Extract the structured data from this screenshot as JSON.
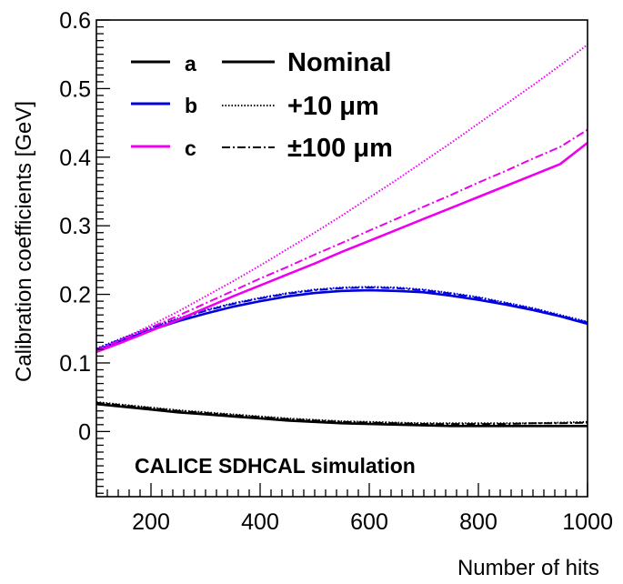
{
  "chart_data": {
    "type": "line",
    "xlabel": "Number of hits",
    "ylabel": "Calibration coefficients [GeV]",
    "xlim": [
      100,
      1000
    ],
    "ylim": [
      -0.095,
      0.6
    ],
    "x_ticks": [
      "200",
      "400",
      "600",
      "800",
      "1000"
    ],
    "y_ticks": [
      "0",
      "0.1",
      "0.2",
      "0.3",
      "0.4",
      "0.5",
      "0.6"
    ],
    "grid": false,
    "annotation": "CALICE SDHCAL simulation",
    "legend": {
      "placement": "top-left",
      "coefficients": [
        {
          "label": "a",
          "color": "#000000"
        },
        {
          "label": "b",
          "color": "#0000dd"
        },
        {
          "label": "c",
          "color": "#ee00ee"
        }
      ],
      "variations": [
        {
          "label": "Nominal",
          "style": "solid"
        },
        {
          "label": "+10 μm",
          "style": "dotted"
        },
        {
          "label": "±100 μm",
          "style": "dashdot"
        }
      ]
    },
    "x": [
      100,
      150,
      200,
      250,
      300,
      350,
      400,
      450,
      500,
      550,
      600,
      650,
      700,
      750,
      800,
      850,
      900,
      950,
      1000
    ],
    "series": [
      {
        "coefficient": "a",
        "variation": "nominal",
        "color": "#000000",
        "style": "solid",
        "values": [
          0.04,
          0.036,
          0.032,
          0.028,
          0.025,
          0.022,
          0.019,
          0.016,
          0.014,
          0.012,
          0.011,
          0.01,
          0.009,
          0.008,
          0.008,
          0.008,
          0.008,
          0.008,
          0.008
        ]
      },
      {
        "coefficient": "a",
        "variation": "+10 um",
        "color": "#000000",
        "style": "dotted",
        "values": [
          0.043,
          0.039,
          0.035,
          0.031,
          0.028,
          0.025,
          0.022,
          0.019,
          0.017,
          0.015,
          0.014,
          0.013,
          0.012,
          0.012,
          0.012,
          0.012,
          0.012,
          0.013,
          0.014
        ]
      },
      {
        "coefficient": "a",
        "variation": "±100 um",
        "color": "#000000",
        "style": "dashdot",
        "values": [
          0.042,
          0.038,
          0.034,
          0.03,
          0.027,
          0.024,
          0.021,
          0.018,
          0.016,
          0.014,
          0.013,
          0.012,
          0.011,
          0.011,
          0.011,
          0.011,
          0.012,
          0.012,
          0.013
        ]
      },
      {
        "coefficient": "b",
        "variation": "nominal",
        "color": "#0000dd",
        "style": "solid",
        "values": [
          0.118,
          0.134,
          0.148,
          0.161,
          0.172,
          0.182,
          0.19,
          0.197,
          0.202,
          0.205,
          0.206,
          0.205,
          0.203,
          0.198,
          0.192,
          0.185,
          0.177,
          0.168,
          0.157
        ]
      },
      {
        "coefficient": "b",
        "variation": "+10 um",
        "color": "#0000dd",
        "style": "dotted",
        "values": [
          0.121,
          0.137,
          0.152,
          0.165,
          0.177,
          0.187,
          0.195,
          0.202,
          0.207,
          0.21,
          0.211,
          0.21,
          0.207,
          0.202,
          0.196,
          0.188,
          0.18,
          0.17,
          0.16
        ]
      },
      {
        "coefficient": "b",
        "variation": "±100 um",
        "color": "#0000dd",
        "style": "dashdot",
        "values": [
          0.12,
          0.136,
          0.151,
          0.164,
          0.176,
          0.186,
          0.194,
          0.201,
          0.206,
          0.209,
          0.21,
          0.209,
          0.206,
          0.201,
          0.195,
          0.187,
          0.179,
          0.169,
          0.159
        ]
      },
      {
        "coefficient": "c",
        "variation": "nominal",
        "color": "#ee00ee",
        "style": "solid",
        "values": [
          0.116,
          0.131,
          0.147,
          0.163,
          0.18,
          0.197,
          0.213,
          0.229,
          0.245,
          0.262,
          0.278,
          0.294,
          0.31,
          0.326,
          0.342,
          0.358,
          0.374,
          0.39,
          0.421
        ]
      },
      {
        "coefficient": "c",
        "variation": "+10 um",
        "color": "#ee00ee",
        "style": "dotted",
        "values": [
          0.118,
          0.136,
          0.155,
          0.175,
          0.197,
          0.219,
          0.242,
          0.266,
          0.29,
          0.315,
          0.341,
          0.367,
          0.394,
          0.421,
          0.449,
          0.477,
          0.505,
          0.534,
          0.564
        ]
      },
      {
        "coefficient": "c",
        "variation": "±100 um",
        "color": "#ee00ee",
        "style": "dashdot",
        "values": [
          0.119,
          0.135,
          0.152,
          0.169,
          0.187,
          0.205,
          0.223,
          0.24,
          0.258,
          0.275,
          0.293,
          0.31,
          0.328,
          0.345,
          0.363,
          0.38,
          0.398,
          0.415,
          0.44
        ]
      }
    ]
  }
}
